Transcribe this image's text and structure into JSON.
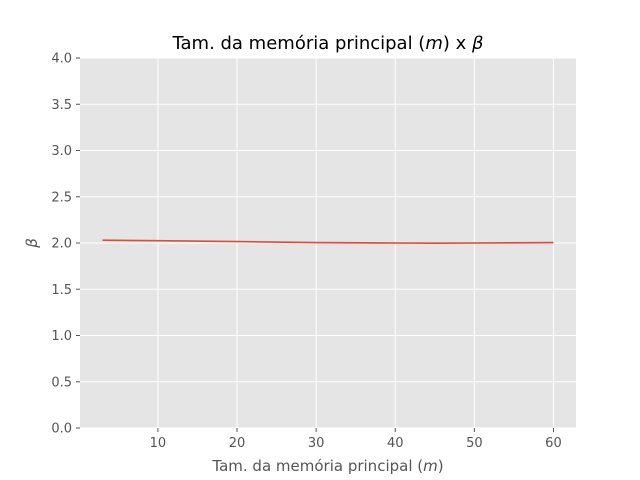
{
  "chart_data": {
    "type": "line",
    "title": "Tam. da memória principal (m) x β",
    "title_parts": [
      {
        "text": "Tam. da memória principal (",
        "italic": false
      },
      {
        "text": "m",
        "italic": true
      },
      {
        "text": ") x ",
        "italic": false
      },
      {
        "text": "β",
        "italic": true
      }
    ],
    "xlabel": "Tam. da memória principal (m)",
    "xlabel_parts": [
      {
        "text": "Tam. da memória principal (",
        "italic": false
      },
      {
        "text": "m",
        "italic": true
      },
      {
        "text": ")",
        "italic": false
      }
    ],
    "ylabel": "β",
    "xlim": [
      0.15,
      62.85
    ],
    "ylim": [
      0,
      4
    ],
    "xticks": [
      10,
      20,
      30,
      40,
      50,
      60
    ],
    "yticks": [
      0.0,
      0.5,
      1.0,
      1.5,
      2.0,
      2.5,
      3.0,
      3.5,
      4.0
    ],
    "ytick_labels": [
      "0.0",
      "0.5",
      "1.0",
      "1.5",
      "2.0",
      "2.5",
      "3.0",
      "3.5",
      "4.0"
    ],
    "grid": true,
    "colors": {
      "background": "#e5e5e5",
      "grid": "#ffffff",
      "line": "#e24a33"
    },
    "series": [
      {
        "x": [
          3,
          10,
          20,
          30,
          40,
          45,
          50,
          60
        ],
        "values": [
          2.03,
          2.025,
          2.015,
          2.005,
          2.0,
          1.998,
          2.0,
          2.005
        ]
      }
    ]
  }
}
